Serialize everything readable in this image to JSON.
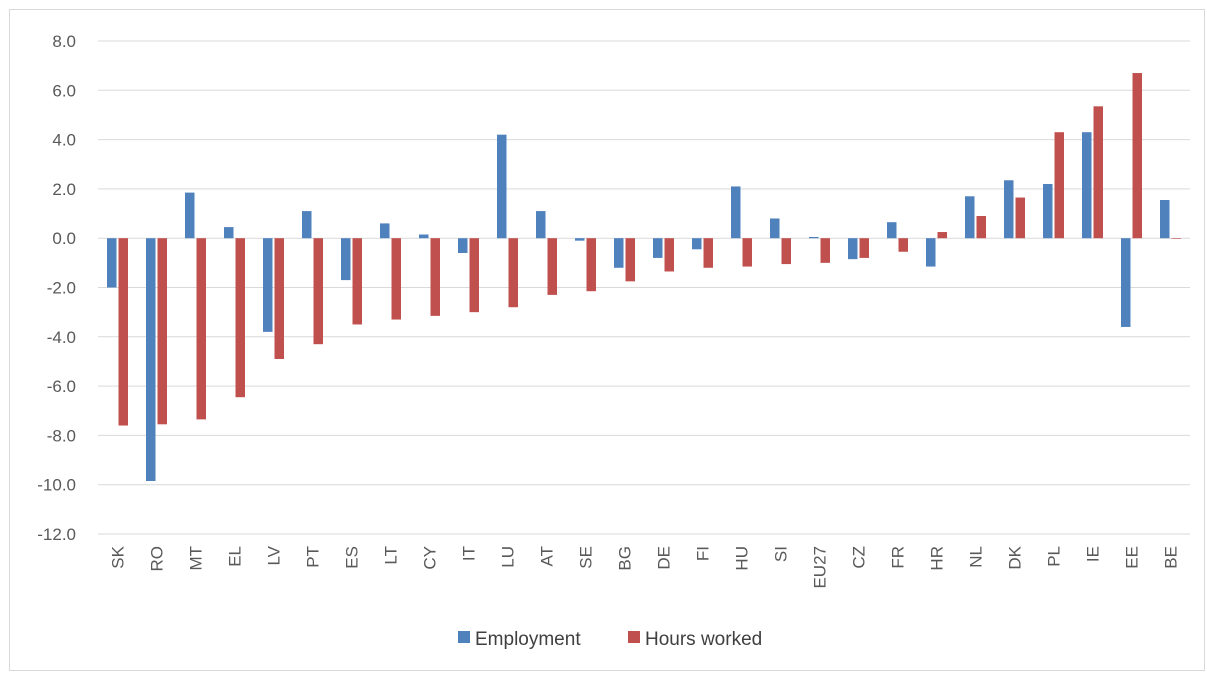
{
  "chart_data": {
    "type": "bar",
    "title": "",
    "xlabel": "",
    "ylabel": "",
    "ylim": [
      -12,
      8
    ],
    "yticks": [
      8,
      6,
      4,
      2,
      0,
      -2,
      -4,
      -6,
      -8,
      -10,
      -12
    ],
    "ytick_labels": [
      "8.0",
      "6.0",
      "4.0",
      "2.0",
      "0.0",
      "-2.0",
      "-4.0",
      "-6.0",
      "-8.0",
      "-10.0",
      "-12.0"
    ],
    "grid": true,
    "legend_position": "bottom",
    "categories": [
      "SK",
      "RO",
      "MT",
      "EL",
      "LV",
      "PT",
      "ES",
      "LT",
      "CY",
      "IT",
      "LU",
      "AT",
      "SE",
      "BG",
      "DE",
      "FI",
      "HU",
      "SI",
      "EU27",
      "CZ",
      "FR",
      "HR",
      "NL",
      "DK",
      "PL",
      "IE",
      "EE",
      "BE"
    ],
    "series": [
      {
        "name": "Employment",
        "color": "#4f81bd",
        "values": [
          -2.0,
          -9.85,
          1.85,
          0.45,
          -3.8,
          1.1,
          -1.7,
          0.6,
          0.15,
          -0.6,
          4.2,
          1.1,
          -0.1,
          -1.2,
          -0.8,
          -0.45,
          2.1,
          0.8,
          0.05,
          -0.85,
          0.65,
          -1.15,
          1.7,
          2.35,
          2.2,
          4.3,
          -3.6,
          1.55
        ]
      },
      {
        "name": "Hours worked",
        "color": "#c0504d",
        "values": [
          -7.6,
          -7.55,
          -7.35,
          -6.45,
          -4.9,
          -4.3,
          -3.5,
          -3.3,
          -3.15,
          -3.0,
          -2.8,
          -2.3,
          -2.15,
          -1.75,
          -1.35,
          -1.2,
          -1.15,
          -1.05,
          -1.0,
          -0.8,
          -0.55,
          0.25,
          0.9,
          1.65,
          4.3,
          5.35,
          6.7,
          0.0
        ]
      }
    ]
  }
}
